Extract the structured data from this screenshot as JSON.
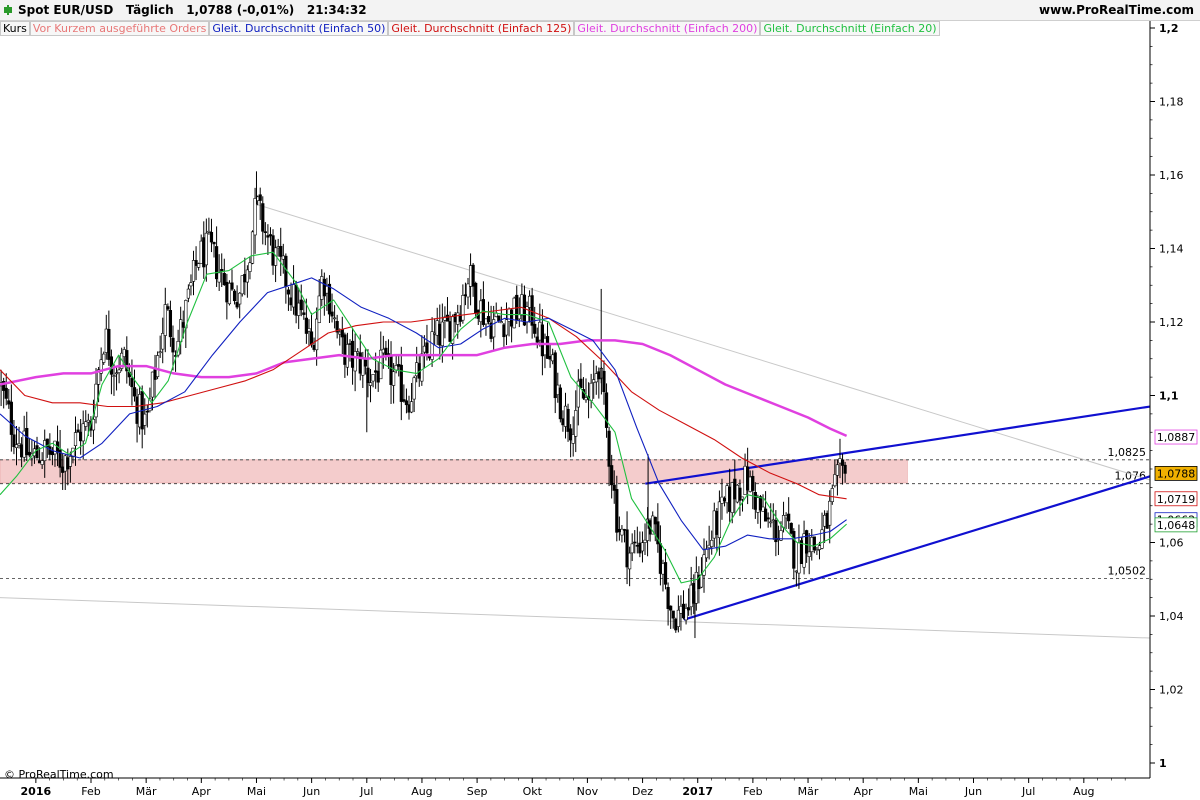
{
  "header": {
    "symbol": "Spot EUR/USD",
    "interval": "Täglich",
    "price": "1,0788",
    "change": "(-0,01%)",
    "time": "21:34:32",
    "brand": "www.ProRealTime.com"
  },
  "legend": [
    {
      "label": "Kurs",
      "color": "#000000"
    },
    {
      "label": "Vor Kurzem ausgeführte Orders",
      "color": "#e87878"
    },
    {
      "label": "Gleit. Durchschnitt (Einfach 50)",
      "color": "#1020c0"
    },
    {
      "label": "Gleit. Durchschnitt (Einfach 125)",
      "color": "#d01010"
    },
    {
      "label": "Gleit. Durchschnitt (Einfach 200)",
      "color": "#e040e0"
    },
    {
      "label": "Gleit. Durchschnitt (Einfach 20)",
      "color": "#20c040"
    }
  ],
  "copyright": "© ProRealTime.com",
  "chart_data": {
    "type": "candlestick",
    "y_ticks": [
      {
        "value": 1.2,
        "label": "1,2",
        "bold": true
      },
      {
        "value": 1.18,
        "label": "1,18"
      },
      {
        "value": 1.16,
        "label": "1,16"
      },
      {
        "value": 1.14,
        "label": "1,14"
      },
      {
        "value": 1.12,
        "label": "1,12"
      },
      {
        "value": 1.1,
        "label": "1,1",
        "bold": true
      },
      {
        "value": 1.06,
        "label": "1,06"
      },
      {
        "value": 1.04,
        "label": "1,04"
      },
      {
        "value": 1.02,
        "label": "1,02"
      },
      {
        "value": 1.0,
        "label": "1",
        "bold": true
      }
    ],
    "ylim": [
      0.99,
      1.2
    ],
    "x_months": [
      {
        "label": "2016",
        "month": 0,
        "bold": true
      },
      {
        "label": "Feb",
        "month": 1
      },
      {
        "label": "Mär",
        "month": 2
      },
      {
        "label": "Apr",
        "month": 3
      },
      {
        "label": "Mai",
        "month": 4
      },
      {
        "label": "Jun",
        "month": 5
      },
      {
        "label": "Jul",
        "month": 6
      },
      {
        "label": "Aug",
        "month": 7
      },
      {
        "label": "Sep",
        "month": 8
      },
      {
        "label": "Okt",
        "month": 9
      },
      {
        "label": "Nov",
        "month": 10
      },
      {
        "label": "Dez",
        "month": 11
      },
      {
        "label": "2017",
        "month": 12,
        "bold": true
      },
      {
        "label": "Feb",
        "month": 13
      },
      {
        "label": "Mär",
        "month": 14
      },
      {
        "label": "Apr",
        "month": 15
      },
      {
        "label": "Mai",
        "month": 16
      },
      {
        "label": "Jun",
        "month": 17
      },
      {
        "label": "Jul",
        "month": 18
      },
      {
        "label": "Aug",
        "month": 19
      }
    ],
    "xlim_months": [
      -0.65,
      20.2
    ],
    "last_month_position": 14.7,
    "price_path": [
      [
        -0.65,
        1.103
      ],
      [
        -0.4,
        1.09
      ],
      [
        -0.1,
        1.083
      ],
      [
        0.2,
        1.085
      ],
      [
        0.5,
        1.082
      ],
      [
        0.8,
        1.09
      ],
      [
        1.0,
        1.092
      ],
      [
        1.1,
        1.104
      ],
      [
        1.25,
        1.117
      ],
      [
        1.4,
        1.108
      ],
      [
        1.6,
        1.11
      ],
      [
        1.8,
        1.098
      ],
      [
        2.0,
        1.092
      ],
      [
        2.2,
        1.11
      ],
      [
        2.35,
        1.123
      ],
      [
        2.55,
        1.113
      ],
      [
        2.75,
        1.125
      ],
      [
        2.95,
        1.138
      ],
      [
        3.15,
        1.14
      ],
      [
        3.35,
        1.133
      ],
      [
        3.55,
        1.128
      ],
      [
        3.7,
        1.128
      ],
      [
        3.85,
        1.138
      ],
      [
        4.0,
        1.152
      ],
      [
        4.15,
        1.145
      ],
      [
        4.35,
        1.137
      ],
      [
        4.5,
        1.133
      ],
      [
        4.65,
        1.127
      ],
      [
        4.85,
        1.12
      ],
      [
        5.0,
        1.113
      ],
      [
        5.2,
        1.133
      ],
      [
        5.35,
        1.125
      ],
      [
        5.5,
        1.114
      ],
      [
        5.7,
        1.11
      ],
      [
        5.9,
        1.109
      ],
      [
        6.05,
        1.105
      ],
      [
        6.3,
        1.108
      ],
      [
        6.5,
        1.105
      ],
      [
        6.75,
        1.099
      ],
      [
        7.0,
        1.108
      ],
      [
        7.2,
        1.115
      ],
      [
        7.45,
        1.118
      ],
      [
        7.7,
        1.125
      ],
      [
        7.85,
        1.133
      ],
      [
        8.0,
        1.126
      ],
      [
        8.2,
        1.12
      ],
      [
        8.4,
        1.12
      ],
      [
        8.6,
        1.122
      ],
      [
        8.8,
        1.123
      ],
      [
        9.0,
        1.122
      ],
      [
        9.15,
        1.115
      ],
      [
        9.35,
        1.108
      ],
      [
        9.55,
        1.096
      ],
      [
        9.7,
        1.092
      ],
      [
        9.85,
        1.1
      ],
      [
        10.05,
        1.098
      ],
      [
        10.2,
        1.11
      ],
      [
        10.35,
        1.09
      ],
      [
        10.55,
        1.065
      ],
      [
        10.75,
        1.057
      ],
      [
        10.95,
        1.06
      ],
      [
        11.15,
        1.065
      ],
      [
        11.3,
        1.057
      ],
      [
        11.55,
        1.04
      ],
      [
        11.7,
        1.041
      ],
      [
        11.9,
        1.044
      ],
      [
        12.1,
        1.055
      ],
      [
        12.3,
        1.064
      ],
      [
        12.5,
        1.07
      ],
      [
        12.7,
        1.075
      ],
      [
        12.9,
        1.077
      ],
      [
        13.05,
        1.072
      ],
      [
        13.2,
        1.066
      ],
      [
        13.45,
        1.063
      ],
      [
        13.6,
        1.064
      ],
      [
        13.8,
        1.055
      ],
      [
        13.95,
        1.062
      ],
      [
        14.15,
        1.058
      ],
      [
        14.35,
        1.066
      ],
      [
        14.5,
        1.075
      ],
      [
        14.6,
        1.079
      ],
      [
        14.7,
        1.0788
      ]
    ],
    "big_spikes": [
      {
        "month": 4.0,
        "high": 1.161
      },
      {
        "month": 10.25,
        "high": 1.129
      },
      {
        "month": 11.1,
        "high": 1.084
      },
      {
        "month": 11.95,
        "high": 1.034
      },
      {
        "month": 6.0,
        "low": 1.09
      }
    ],
    "ma20_path": [
      [
        -0.65,
        1.073
      ],
      [
        -0.35,
        1.078
      ],
      [
        0.0,
        1.085
      ],
      [
        0.3,
        1.087
      ],
      [
        0.6,
        1.084
      ],
      [
        0.9,
        1.087
      ],
      [
        1.2,
        1.103
      ],
      [
        1.5,
        1.111
      ],
      [
        1.8,
        1.104
      ],
      [
        2.1,
        1.098
      ],
      [
        2.4,
        1.104
      ],
      [
        2.75,
        1.12
      ],
      [
        3.1,
        1.133
      ],
      [
        3.5,
        1.134
      ],
      [
        3.9,
        1.138
      ],
      [
        4.3,
        1.139
      ],
      [
        4.7,
        1.131
      ],
      [
        5.0,
        1.122
      ],
      [
        5.4,
        1.126
      ],
      [
        5.75,
        1.118
      ],
      [
        6.1,
        1.11
      ],
      [
        6.5,
        1.107
      ],
      [
        6.9,
        1.106
      ],
      [
        7.3,
        1.11
      ],
      [
        7.7,
        1.118
      ],
      [
        8.1,
        1.123
      ],
      [
        8.5,
        1.122
      ],
      [
        8.9,
        1.122
      ],
      [
        9.3,
        1.12
      ],
      [
        9.7,
        1.105
      ],
      [
        10.1,
        1.098
      ],
      [
        10.5,
        1.09
      ],
      [
        10.8,
        1.072
      ],
      [
        11.1,
        1.065
      ],
      [
        11.4,
        1.058
      ],
      [
        11.7,
        1.049
      ],
      [
        12.0,
        1.05
      ],
      [
        12.3,
        1.056
      ],
      [
        12.6,
        1.066
      ],
      [
        12.9,
        1.073
      ],
      [
        13.2,
        1.072
      ],
      [
        13.5,
        1.065
      ],
      [
        13.8,
        1.06
      ],
      [
        14.1,
        1.059
      ],
      [
        14.4,
        1.061
      ],
      [
        14.7,
        1.065
      ]
    ],
    "ma50_path": [
      [
        -0.65,
        1.095
      ],
      [
        -0.2,
        1.089
      ],
      [
        0.3,
        1.085
      ],
      [
        0.8,
        1.083
      ],
      [
        1.2,
        1.087
      ],
      [
        1.7,
        1.095
      ],
      [
        2.2,
        1.097
      ],
      [
        2.7,
        1.101
      ],
      [
        3.2,
        1.111
      ],
      [
        3.7,
        1.12
      ],
      [
        4.2,
        1.128
      ],
      [
        4.6,
        1.13
      ],
      [
        5.0,
        1.132
      ],
      [
        5.4,
        1.129
      ],
      [
        5.9,
        1.124
      ],
      [
        6.4,
        1.121
      ],
      [
        6.9,
        1.117
      ],
      [
        7.3,
        1.113
      ],
      [
        7.7,
        1.114
      ],
      [
        8.1,
        1.118
      ],
      [
        8.5,
        1.121
      ],
      [
        8.9,
        1.12
      ],
      [
        9.3,
        1.121
      ],
      [
        9.7,
        1.118
      ],
      [
        10.1,
        1.115
      ],
      [
        10.5,
        1.107
      ],
      [
        10.9,
        1.091
      ],
      [
        11.3,
        1.076
      ],
      [
        11.7,
        1.066
      ],
      [
        12.1,
        1.058
      ],
      [
        12.5,
        1.059
      ],
      [
        12.9,
        1.062
      ],
      [
        13.3,
        1.061
      ],
      [
        13.7,
        1.061
      ],
      [
        14.1,
        1.062
      ],
      [
        14.4,
        1.063
      ],
      [
        14.7,
        1.0662
      ]
    ],
    "ma125_path": [
      [
        -0.65,
        1.107
      ],
      [
        -0.2,
        1.1
      ],
      [
        0.3,
        1.098
      ],
      [
        0.8,
        1.098
      ],
      [
        1.3,
        1.097
      ],
      [
        1.8,
        1.097
      ],
      [
        2.3,
        1.098
      ],
      [
        2.8,
        1.1
      ],
      [
        3.3,
        1.102
      ],
      [
        3.8,
        1.104
      ],
      [
        4.3,
        1.107
      ],
      [
        4.8,
        1.112
      ],
      [
        5.3,
        1.117
      ],
      [
        5.8,
        1.119
      ],
      [
        6.3,
        1.12
      ],
      [
        6.8,
        1.12
      ],
      [
        7.3,
        1.121
      ],
      [
        7.8,
        1.122
      ],
      [
        8.3,
        1.123
      ],
      [
        8.8,
        1.124
      ],
      [
        9.3,
        1.121
      ],
      [
        9.8,
        1.116
      ],
      [
        10.3,
        1.109
      ],
      [
        10.8,
        1.101
      ],
      [
        11.3,
        1.096
      ],
      [
        11.8,
        1.092
      ],
      [
        12.3,
        1.088
      ],
      [
        12.8,
        1.083
      ],
      [
        13.3,
        1.079
      ],
      [
        13.8,
        1.076
      ],
      [
        14.2,
        1.073
      ],
      [
        14.7,
        1.0719
      ]
    ],
    "ma200_path": [
      [
        -0.65,
        1.103
      ],
      [
        0.0,
        1.105
      ],
      [
        0.5,
        1.106
      ],
      [
        1.0,
        1.106
      ],
      [
        1.5,
        1.108
      ],
      [
        2.0,
        1.108
      ],
      [
        2.5,
        1.106
      ],
      [
        3.0,
        1.105
      ],
      [
        3.5,
        1.105
      ],
      [
        4.0,
        1.106
      ],
      [
        4.5,
        1.109
      ],
      [
        5.0,
        1.11
      ],
      [
        5.5,
        1.111
      ],
      [
        6.0,
        1.11
      ],
      [
        6.5,
        1.111
      ],
      [
        7.0,
        1.111
      ],
      [
        7.5,
        1.111
      ],
      [
        8.0,
        1.111
      ],
      [
        8.5,
        1.113
      ],
      [
        9.0,
        1.114
      ],
      [
        9.5,
        1.114
      ],
      [
        10.0,
        1.115
      ],
      [
        10.5,
        1.115
      ],
      [
        11.0,
        1.114
      ],
      [
        11.5,
        1.111
      ],
      [
        12.0,
        1.107
      ],
      [
        12.5,
        1.103
      ],
      [
        13.0,
        1.1
      ],
      [
        13.5,
        1.097
      ],
      [
        14.0,
        1.094
      ],
      [
        14.4,
        1.091
      ],
      [
        14.7,
        1.089
      ]
    ],
    "resistance_zone": {
      "low": 1.0762,
      "high": 1.0825
    },
    "hlines": [
      {
        "value": 1.0825,
        "label": "1,0825"
      },
      {
        "value": 1.076,
        "label": "1,076"
      },
      {
        "value": 1.0502,
        "label": "1,0502"
      }
    ],
    "trendlines": [
      {
        "color": "#c8c8c8",
        "width": 1,
        "from": [
          4.0,
          1.152
        ],
        "to": [
          20.2,
          1.077
        ]
      },
      {
        "color": "#c8c8c8",
        "width": 1,
        "from": [
          -0.65,
          1.045
        ],
        "to": [
          20.2,
          1.034
        ]
      },
      {
        "color": "#1010d0",
        "width": 2.2,
        "from": [
          11.05,
          1.076
        ],
        "to": [
          20.2,
          1.097
        ]
      },
      {
        "color": "#1010d0",
        "width": 2.2,
        "from": [
          11.75,
          1.039
        ],
        "to": [
          20.2,
          1.078
        ]
      }
    ],
    "price_labels": [
      {
        "value": 1.0887,
        "label": "1,0887",
        "color": "#e040e0",
        "fill": "#ffffff"
      },
      {
        "value": 1.0788,
        "label": "1,0788",
        "color": "#000000",
        "fill": "#f0b000"
      },
      {
        "value": 1.0719,
        "label": "1,0719",
        "color": "#d01010",
        "fill": "#ffffff"
      },
      {
        "value": 1.0662,
        "label": "1,0662",
        "color": "#1020c0",
        "fill": "#ffffff"
      },
      {
        "value": 1.0648,
        "label": "1,0648",
        "color": "#20a030",
        "fill": "#ffffff"
      }
    ]
  }
}
